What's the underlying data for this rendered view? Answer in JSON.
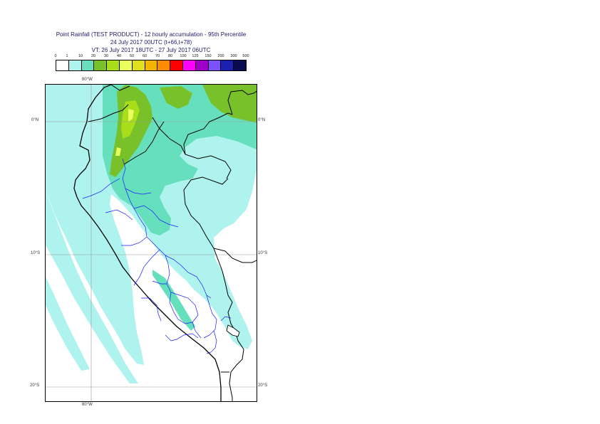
{
  "map": {
    "title_lines": [
      "Point Rainfall (TEST PRODUCT) - 12 hourly accumulation - 95th Percentile",
      "24 July 2017 00UTC (t+66,t+78)",
      "VT: 26 July 2017 18UTC - 27 July 2017 06UTC"
    ],
    "legend": {
      "labels": [
        "0",
        "1",
        "10",
        "20",
        "30",
        "40",
        "50",
        "60",
        "70",
        "80",
        "100",
        "125",
        "150",
        "200",
        "300",
        "500"
      ],
      "colors": [
        "#ffffff",
        "#aef3ee",
        "#66dfbd",
        "#78c12a",
        "#a8de1a",
        "#e8ff5e",
        "#e0e020",
        "#f2b400",
        "#ff8c00",
        "#ff0000",
        "#ff00ff",
        "#a000c8",
        "#7a52ff",
        "#1c20b0",
        "#0a0a50"
      ]
    },
    "axes": {
      "top_lon": "80°W",
      "bottom_lon": "80°W",
      "lat_labels": [
        "0°N",
        "10°S",
        "20°S"
      ]
    }
  }
}
